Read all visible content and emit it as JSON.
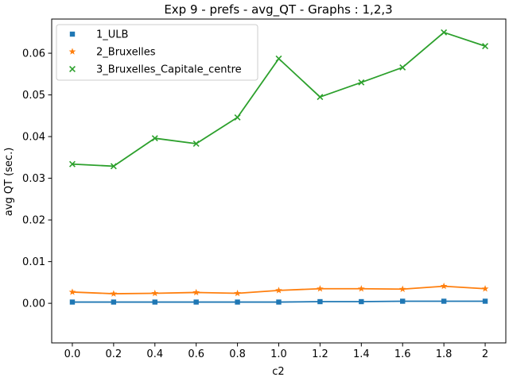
{
  "chart_data": {
    "type": "line",
    "title": "Exp 9 - prefs - avg_QT - Graphs : 1,2,3",
    "xlabel": "c2",
    "ylabel": "avg QT (sec.)",
    "x": [
      0.0,
      0.2,
      0.4,
      0.6,
      0.8,
      1.0,
      1.2,
      1.4,
      1.6,
      1.8,
      2.0
    ],
    "x_tick_labels": [
      "0.0",
      "0.2",
      "0.4",
      "0.6",
      "0.8",
      "1.0",
      "1.2",
      "1.4",
      "1.6",
      "1.8",
      "2"
    ],
    "y_ticks": [
      0.0,
      0.01,
      0.02,
      0.03,
      0.04,
      0.05,
      0.06
    ],
    "y_tick_labels": [
      "0.00",
      "0.01",
      "0.02",
      "0.03",
      "0.04",
      "0.05",
      "0.06"
    ],
    "ylim": [
      -0.0095,
      0.0682
    ],
    "xlim": [
      -0.1,
      2.1
    ],
    "grid": false,
    "legend_position": "top-left",
    "series": [
      {
        "name": "1_ULB",
        "color": "#1f77b4",
        "marker": "square",
        "values": [
          0.0003,
          0.0003,
          0.0003,
          0.0003,
          0.0003,
          0.0003,
          0.0004,
          0.0004,
          0.0005,
          0.0005,
          0.0005
        ]
      },
      {
        "name": "2_Bruxelles",
        "color": "#ff7f0e",
        "marker": "star",
        "values": [
          0.0027,
          0.0023,
          0.0024,
          0.0026,
          0.0024,
          0.0031,
          0.0035,
          0.0035,
          0.0034,
          0.0041,
          0.0035
        ]
      },
      {
        "name": "3_Bruxelles_Capitale_centre",
        "color": "#2ca02c",
        "marker": "x",
        "values": [
          0.0334,
          0.0329,
          0.0396,
          0.0383,
          0.0446,
          0.0587,
          0.0495,
          0.053,
          0.0566,
          0.065,
          0.0617
        ]
      }
    ]
  }
}
